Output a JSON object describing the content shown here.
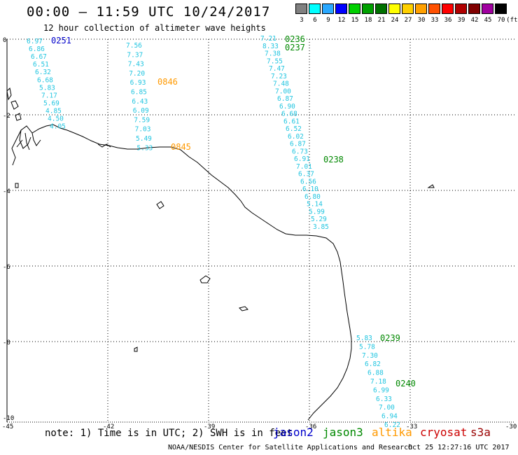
{
  "header": {
    "title": "00:00 – 11:59 UTC 10/24/2017",
    "subtitle": "12 hour collection of altimeter wave heights"
  },
  "legend": {
    "unit": "(ft)",
    "items": [
      {
        "label": "3",
        "color": "#808080"
      },
      {
        "label": "6",
        "color": "#00ffff"
      },
      {
        "label": "9",
        "color": "#2aa8ff"
      },
      {
        "label": "12",
        "color": "#0000ff"
      },
      {
        "label": "15",
        "color": "#00d000"
      },
      {
        "label": "18",
        "color": "#00a000"
      },
      {
        "label": "21",
        "color": "#007000"
      },
      {
        "label": "24",
        "color": "#ffff00"
      },
      {
        "label": "27",
        "color": "#ffd000"
      },
      {
        "label": "30",
        "color": "#ffa000"
      },
      {
        "label": "33",
        "color": "#ff5000"
      },
      {
        "label": "36",
        "color": "#ff0000"
      },
      {
        "label": "39",
        "color": "#b00000"
      },
      {
        "label": "42",
        "color": "#800000"
      },
      {
        "label": "45",
        "color": "#a000a0"
      },
      {
        "label": "70",
        "color": "#000000"
      }
    ]
  },
  "axes": {
    "lon_ticks": [
      "-45",
      "-42",
      "-39",
      "-36",
      "-33",
      "-30"
    ],
    "lat_ticks": [
      "0",
      "-2",
      "-4",
      "-6",
      "-8",
      "-10"
    ]
  },
  "passes": [
    {
      "satellite": "jason2",
      "time": "0251",
      "color": "#0000cc",
      "values": [
        "6.97",
        "6.86",
        "6.67",
        "6.51",
        "6.32",
        "6.68",
        "5.83",
        "7.17",
        "5.69",
        "4.85",
        "4.50",
        "4.05"
      ]
    },
    {
      "satellite": "altika",
      "time": "0846",
      "color": "#ff9900",
      "values": [
        "7.56",
        "7.37",
        "7.43",
        "7.20",
        "6.93",
        "6.85",
        "6.43",
        "6.09",
        "7.59",
        "7.03",
        "5.49",
        "5.33"
      ]
    },
    {
      "satellite": "altika",
      "time": "0845",
      "color": "#ff9900",
      "values": []
    },
    {
      "satellite": "jason3",
      "time": "0236",
      "color": "#008800",
      "values": [
        "7.21",
        "8.33",
        "7.38",
        "7.55",
        "7.47",
        "7.23",
        "7.48",
        "7.00",
        "6.87",
        "6.90",
        "6.68",
        "6.61",
        "6.52",
        "6.02",
        "6.87",
        "6.73",
        "6.91",
        "7.01",
        "6.37",
        "6.56",
        "6.10",
        "6.80",
        "5.14",
        "5.99",
        "5.29",
        "3.85"
      ]
    },
    {
      "satellite": "jason3",
      "time": "0237",
      "color": "#008800",
      "values": []
    },
    {
      "satellite": "jason3",
      "time": "0238",
      "color": "#008800",
      "values": []
    },
    {
      "satellite": "jason3",
      "time": "0239",
      "color": "#008800",
      "values": [
        "5.83",
        "5.78",
        "7.30",
        "6.82",
        "6.88",
        "7.18",
        "6.99",
        "6.33",
        "7.00",
        "6.94",
        "6.22"
      ]
    },
    {
      "satellite": "jason3",
      "time": "0240",
      "color": "#008800",
      "values": []
    }
  ],
  "footer": {
    "note": "note: 1) Time is in UTC; 2) SWH is in feet",
    "satellites": [
      {
        "name": "jason2",
        "color": "#0000cc"
      },
      {
        "name": "jason3",
        "color": "#008800"
      },
      {
        "name": "altika",
        "color": "#ff9900"
      },
      {
        "name": "cryosat",
        "color": "#cc0000"
      },
      {
        "name": "s3a",
        "color": "#990000"
      }
    ],
    "credit": "NOAA/NESDIS Center for Satellite Applications and Research",
    "timestamp": "Oct 25 12:27:16 UTC 2017"
  }
}
